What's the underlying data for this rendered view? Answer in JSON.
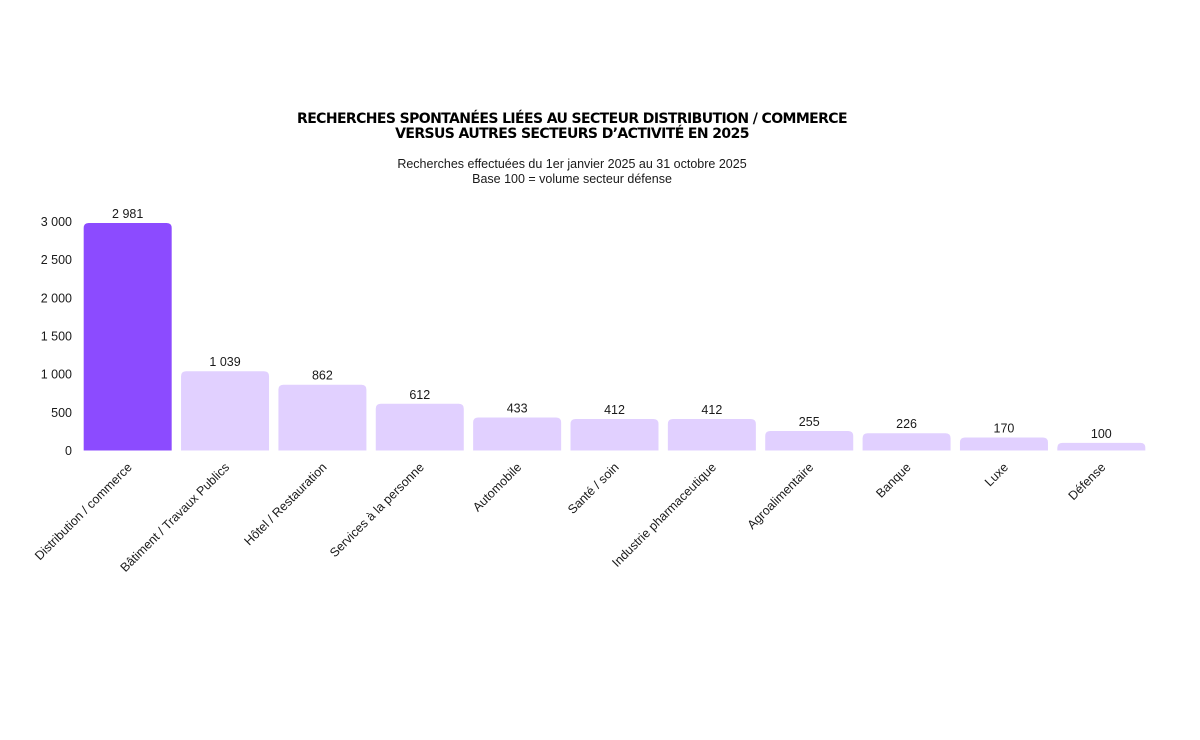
{
  "chart_data": {
    "type": "bar",
    "title_lines": [
      "RECHERCHES SPONTANÉES LIÉES AU SECTEUR DISTRIBUTION / COMMERCE",
      "VERSUS AUTRES SECTEURS D’ACTIVITÉ EN 2025"
    ],
    "subtitle_lines": [
      "Recherches effectuées du 1er janvier 2025 au 31 octobre 2025",
      "Base 100 = volume secteur défense"
    ],
    "xlabel": "",
    "ylabel": "",
    "ylim": [
      0,
      3000
    ],
    "yticks": [
      0,
      500,
      1000,
      1500,
      2000,
      2500,
      3000
    ],
    "ytick_labels": [
      "0",
      "500",
      "1 000",
      "1 500",
      "2 000",
      "2 500",
      "3 000"
    ],
    "grid": false,
    "categories": [
      "Distribution / commerce",
      "Bâtiment / Travaux Publics",
      "Hôtel / Restauration",
      "Services à la personne",
      "Automobile",
      "Santé / soin",
      "Industrie pharmaceutique",
      "Agroalimentaire",
      "Banque",
      "Luxe",
      "Défense"
    ],
    "values": [
      2981,
      1039,
      862,
      612,
      433,
      412,
      412,
      255,
      226,
      170,
      100
    ],
    "value_labels": [
      "2 981",
      "1 039",
      "862",
      "612",
      "433",
      "412",
      "412",
      "255",
      "226",
      "170",
      "100"
    ],
    "colors": {
      "highlight": "#8c4bff",
      "default": "#e1d0ff"
    },
    "highlight_index": 0
  }
}
